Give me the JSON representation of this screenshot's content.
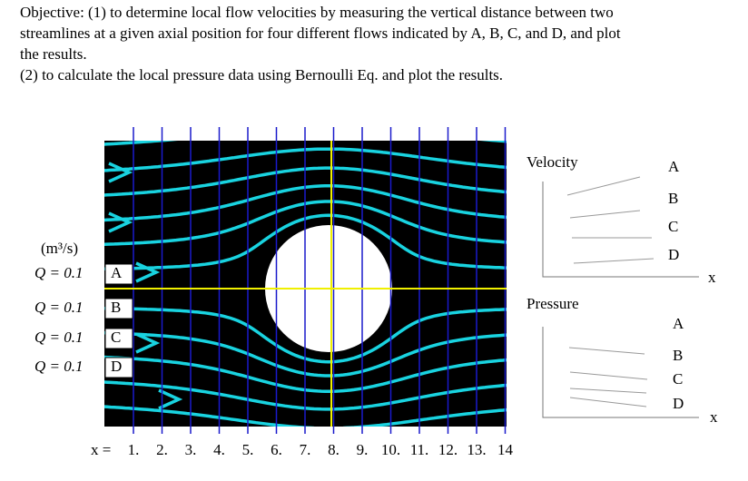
{
  "objective": {
    "lines": [
      "Objective: (1) to determine local flow velocities by measuring the vertical distance between two",
      "streamlines at a given axial position for four different flows indicated by A, B, C, and D, and plot",
      "the results.",
      "(2) to calculate the local pressure data using Bernoulli Eq. and plot the results."
    ]
  },
  "diagram": {
    "unit": "(m³/s)",
    "flows": [
      {
        "expression": "Q = 0.1",
        "label": "A"
      },
      {
        "expression": "Q = 0.1",
        "label": "B"
      },
      {
        "expression": "Q = 0.1",
        "label": "C"
      },
      {
        "expression": "Q = 0.1",
        "label": "D"
      }
    ],
    "x_prefix": "x =",
    "x_labels": [
      "1.",
      "2.",
      "3.",
      "4.",
      "5.",
      "6.",
      "7.",
      "8.",
      "9.",
      "10.",
      "11.",
      "12.",
      "13.",
      "14"
    ]
  },
  "velocity_plot": {
    "title": "Velocity",
    "labels": [
      "A",
      "B",
      "C",
      "D"
    ],
    "axis": "x"
  },
  "pressure_plot": {
    "title": "Pressure",
    "labels": [
      "A",
      "B",
      "C",
      "D"
    ],
    "axis": "x"
  }
}
